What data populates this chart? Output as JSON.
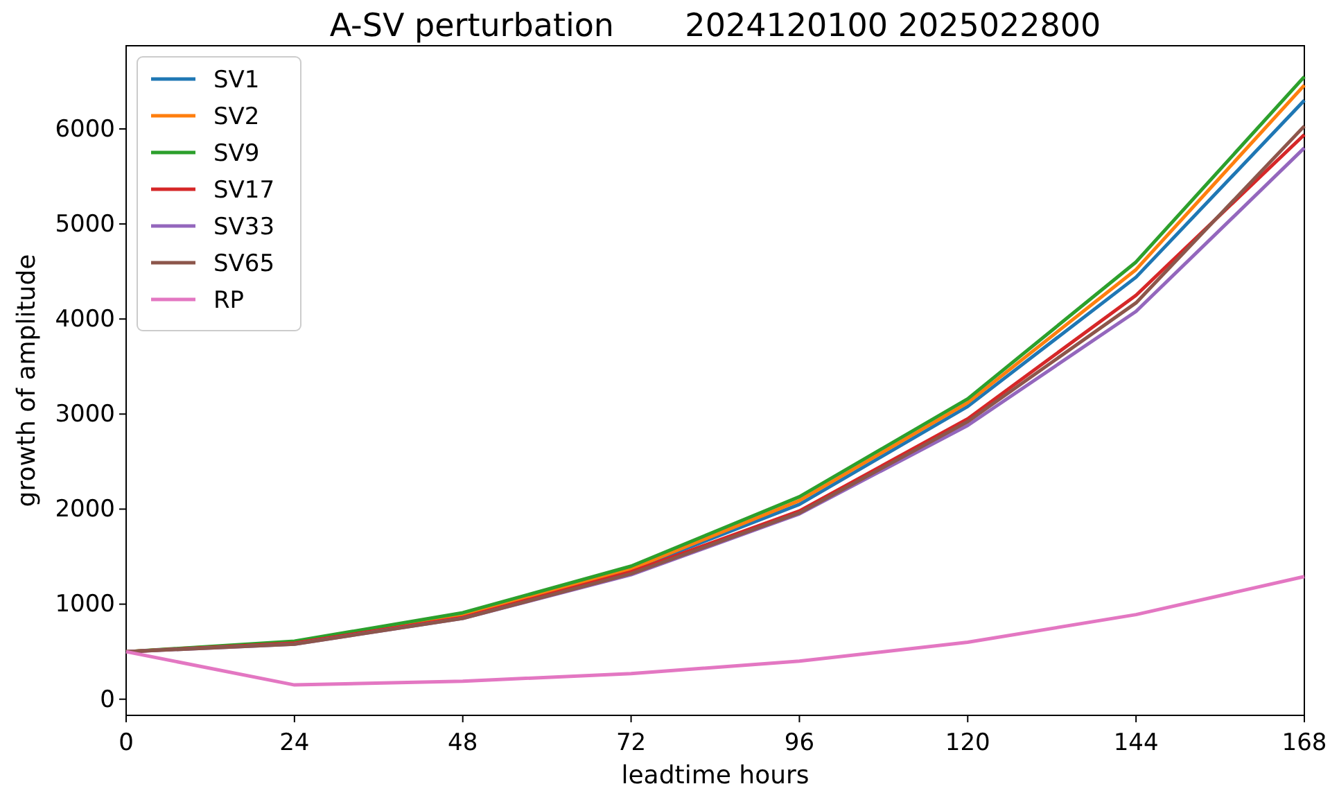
{
  "chart_data": {
    "type": "line",
    "title": "A-SV perturbation       2024120100 2025022800",
    "xlabel": "leadtime hours",
    "ylabel": "growth of amplitude",
    "x": [
      0,
      24,
      48,
      72,
      96,
      120,
      144,
      168
    ],
    "xlim": [
      0,
      168
    ],
    "xticks": [
      0,
      24,
      48,
      72,
      96,
      120,
      144,
      168
    ],
    "ylim": [
      -170,
      6875
    ],
    "yticks": [
      0,
      1000,
      2000,
      3000,
      4000,
      5000,
      6000
    ],
    "grid": false,
    "legend": "top left",
    "marker": "none",
    "line_style": "solid",
    "series": [
      {
        "name": "SV1",
        "color": "#1f77b4",
        "values": [
          null,
          null,
          880,
          1360,
          2050,
          3080,
          4440,
          6300
        ]
      },
      {
        "name": "SV2",
        "color": "#ff7f0e",
        "values": [
          500,
          600,
          890,
          1370,
          2090,
          3120,
          4520,
          6460
        ]
      },
      {
        "name": "SV9",
        "color": "#2ca02c",
        "values": [
          500,
          610,
          910,
          1400,
          2130,
          3160,
          4600,
          6550
        ]
      },
      {
        "name": "SV17",
        "color": "#d62728",
        "values": [
          500,
          590,
          860,
          1340,
          1980,
          2950,
          4250,
          5940
        ]
      },
      {
        "name": "SV33",
        "color": "#9467bd",
        "values": [
          500,
          580,
          850,
          1310,
          1950,
          2880,
          4080,
          5800
        ]
      },
      {
        "name": "SV65",
        "color": "#8c564b",
        "values": [
          500,
          580,
          850,
          1320,
          1960,
          2920,
          4170,
          6030
        ]
      },
      {
        "name": "RP",
        "color": "#e377c2",
        "values": [
          500,
          150,
          190,
          270,
          400,
          600,
          890,
          1290
        ]
      }
    ]
  }
}
